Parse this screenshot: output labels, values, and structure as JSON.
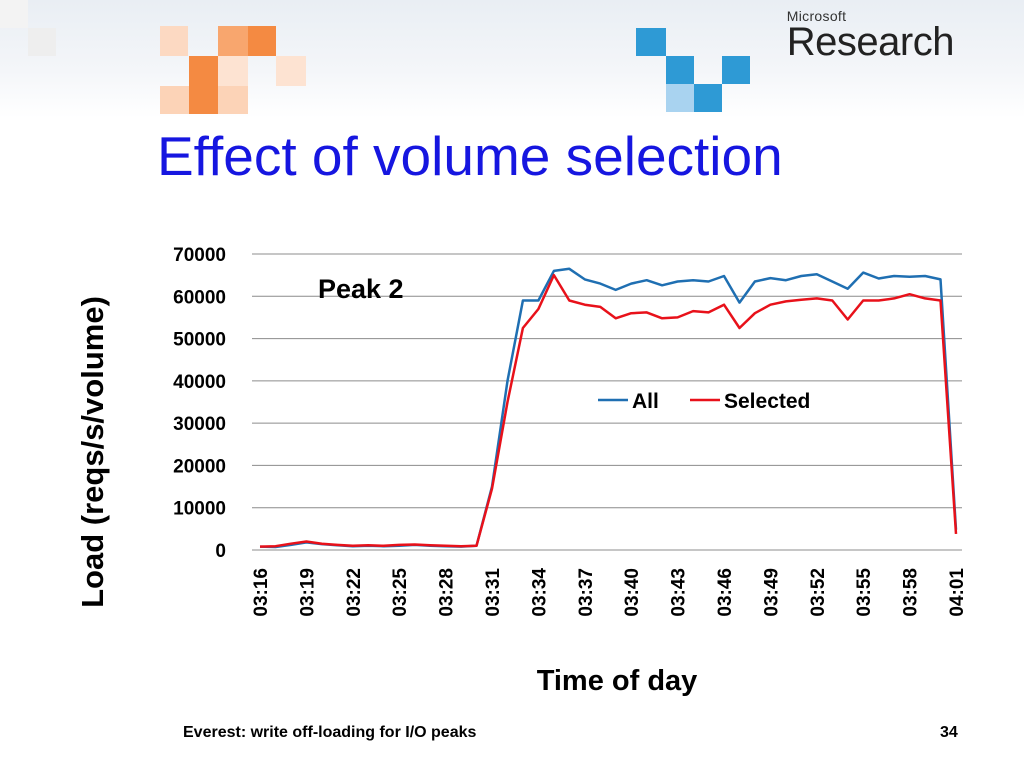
{
  "slide": {
    "brand_top": "Microsoft",
    "brand_main": "Research",
    "title": "Effect of volume selection",
    "footer_left": "Everest: write off-loading for I/O peaks",
    "page_number": "34"
  },
  "colors": {
    "title": "#1616e0",
    "all": "#1f6fb2",
    "selected": "#e8111a",
    "gridline": "#8c8c8c"
  },
  "chart_data": {
    "type": "line",
    "annotation": "Peak 2",
    "xlabel": "Time of day",
    "ylabel": "Load (reqs/s/volume)",
    "ylim": [
      0,
      70000
    ],
    "yticks": [
      0,
      10000,
      20000,
      30000,
      40000,
      50000,
      60000,
      70000
    ],
    "grid": true,
    "legend": "center-right",
    "xticks": [
      "03:16",
      "03:19",
      "03:22",
      "03:25",
      "03:28",
      "03:31",
      "03:34",
      "03:37",
      "03:40",
      "03:43",
      "03:46",
      "03:49",
      "03:52",
      "03:55",
      "03:58",
      "04:01"
    ],
    "x": [
      "03:16",
      "03:17",
      "03:18",
      "03:19",
      "03:20",
      "03:21",
      "03:22",
      "03:23",
      "03:24",
      "03:25",
      "03:26",
      "03:27",
      "03:28",
      "03:29",
      "03:30",
      "03:31",
      "03:32",
      "03:33",
      "03:34",
      "03:35",
      "03:36",
      "03:37",
      "03:38",
      "03:39",
      "03:40",
      "03:41",
      "03:42",
      "03:43",
      "03:44",
      "03:45",
      "03:46",
      "03:47",
      "03:48",
      "03:49",
      "03:50",
      "03:51",
      "03:52",
      "03:53",
      "03:54",
      "03:55",
      "03:56",
      "03:57",
      "03:58",
      "03:59",
      "04:00",
      "04:01"
    ],
    "series": [
      {
        "name": "All",
        "values": [
          800,
          700,
          1200,
          1800,
          1400,
          1100,
          900,
          1000,
          900,
          1000,
          1200,
          1000,
          900,
          800,
          1000,
          15000,
          40000,
          59000,
          59000,
          66000,
          66500,
          64000,
          63000,
          61500,
          63000,
          63800,
          62600,
          63500,
          63800,
          63500,
          64800,
          58500,
          63500,
          64300,
          63800,
          64800,
          65200,
          63500,
          61800,
          65600,
          64200,
          64800,
          64600,
          64800,
          64000,
          4800
        ]
      },
      {
        "name": "Selected",
        "values": [
          800,
          900,
          1500,
          2000,
          1500,
          1200,
          1000,
          1100,
          1000,
          1200,
          1300,
          1100,
          1000,
          900,
          1000,
          14500,
          35000,
          52500,
          57000,
          65000,
          59000,
          58000,
          57500,
          54800,
          56000,
          56200,
          54800,
          55000,
          56500,
          56200,
          58000,
          52500,
          56000,
          58000,
          58800,
          59200,
          59500,
          59000,
          54500,
          59000,
          59000,
          59500,
          60500,
          59500,
          59000,
          3800
        ]
      }
    ]
  }
}
